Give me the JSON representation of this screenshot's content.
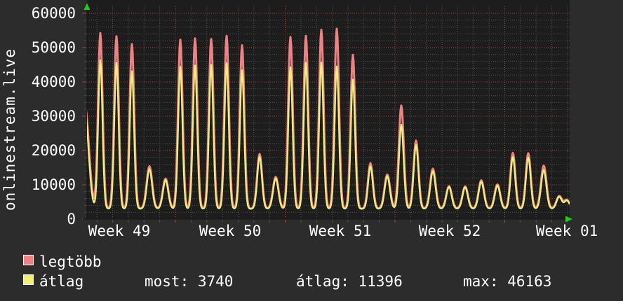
{
  "colors": {
    "background": "#2c2c2c",
    "plot_background": "#1d1d1d",
    "grid_minor": "#525252",
    "grid_major": "#a84444",
    "axis_arrow": "#22cc22",
    "series_max": "#ef8383",
    "series_avg": "#f2ee7b",
    "text": "#ffffff"
  },
  "legend": {
    "series1_label": "legtöbb",
    "series2_label": "átlag",
    "stat_most": "most: 3740",
    "stat_avg": "átlag: 11396",
    "stat_max": "max: 46163"
  },
  "chart_data": {
    "type": "line",
    "title": "",
    "xlabel": "",
    "ylabel": "onlinestream.live",
    "ylim": [
      0,
      60000
    ],
    "y_ticks": [
      0,
      10000,
      20000,
      30000,
      40000,
      50000,
      60000
    ],
    "y_minor_step": 2000,
    "x_ticks": [
      "Week 49",
      "Week 50",
      "Week 51",
      "Week 52",
      "Week 01"
    ],
    "grid": "dotted; minor every 2000 / 1 day, major red every 10000 / 1 week",
    "legend_position": "bottom-left",
    "series": [
      {
        "name": "legtöbb",
        "color": "#ef8383",
        "meaning": "daily maximum viewers"
      },
      {
        "name": "átlag",
        "color": "#f2ee7b",
        "meaning": "daily average viewers"
      }
    ],
    "stats": {
      "most": 3740,
      "átlag": 11396,
      "max": 46163
    },
    "valley_baseline": 3000,
    "days": [
      {
        "x": 121,
        "max": 33000,
        "avg": 31000,
        "s": 8
      },
      {
        "x": 143,
        "max": 54200,
        "avg": 46300
      },
      {
        "x": 166,
        "max": 53300,
        "avg": 45600
      },
      {
        "x": 188,
        "max": 51000,
        "avg": 43100
      },
      {
        "x": 213,
        "max": 15400,
        "avg": 14600
      },
      {
        "x": 236,
        "max": 11800,
        "avg": 11400
      },
      {
        "x": 257,
        "max": 52300,
        "avg": 44400
      },
      {
        "x": 278,
        "max": 52700,
        "avg": 44800
      },
      {
        "x": 301,
        "max": 52500,
        "avg": 45000
      },
      {
        "x": 323,
        "max": 53400,
        "avg": 45500
      },
      {
        "x": 345,
        "max": 50700,
        "avg": 43400
      },
      {
        "x": 370,
        "max": 19000,
        "avg": 18200
      },
      {
        "x": 393,
        "max": 12300,
        "avg": 11900
      },
      {
        "x": 414,
        "max": 53100,
        "avg": 44300
      },
      {
        "x": 436,
        "max": 53400,
        "avg": 45600
      },
      {
        "x": 458,
        "max": 55200,
        "avg": 45700
      },
      {
        "x": 480,
        "max": 55500,
        "avg": 44500
      },
      {
        "x": 503,
        "max": 47900,
        "avg": 40700
      },
      {
        "x": 528,
        "max": 16300,
        "avg": 15400
      },
      {
        "x": 552,
        "max": 13000,
        "avg": 12500
      },
      {
        "x": 572,
        "max": 33100,
        "avg": 27500
      },
      {
        "x": 593,
        "max": 22900,
        "avg": 21600
      },
      {
        "x": 617,
        "max": 14700,
        "avg": 14000
      },
      {
        "x": 640,
        "max": 9600,
        "avg": 9400
      },
      {
        "x": 663,
        "max": 9500,
        "avg": 9300
      },
      {
        "x": 686,
        "max": 11300,
        "avg": 10900
      },
      {
        "x": 709,
        "max": 10100,
        "avg": 9800
      },
      {
        "x": 731,
        "max": 19300,
        "avg": 18100
      },
      {
        "x": 753,
        "max": 19200,
        "avg": 18000
      },
      {
        "x": 775,
        "max": 15600,
        "avg": 14300
      },
      {
        "x": 797,
        "max": 6700,
        "avg": 6500
      },
      {
        "x": 808,
        "max": 5600,
        "avg": 5400
      }
    ]
  }
}
